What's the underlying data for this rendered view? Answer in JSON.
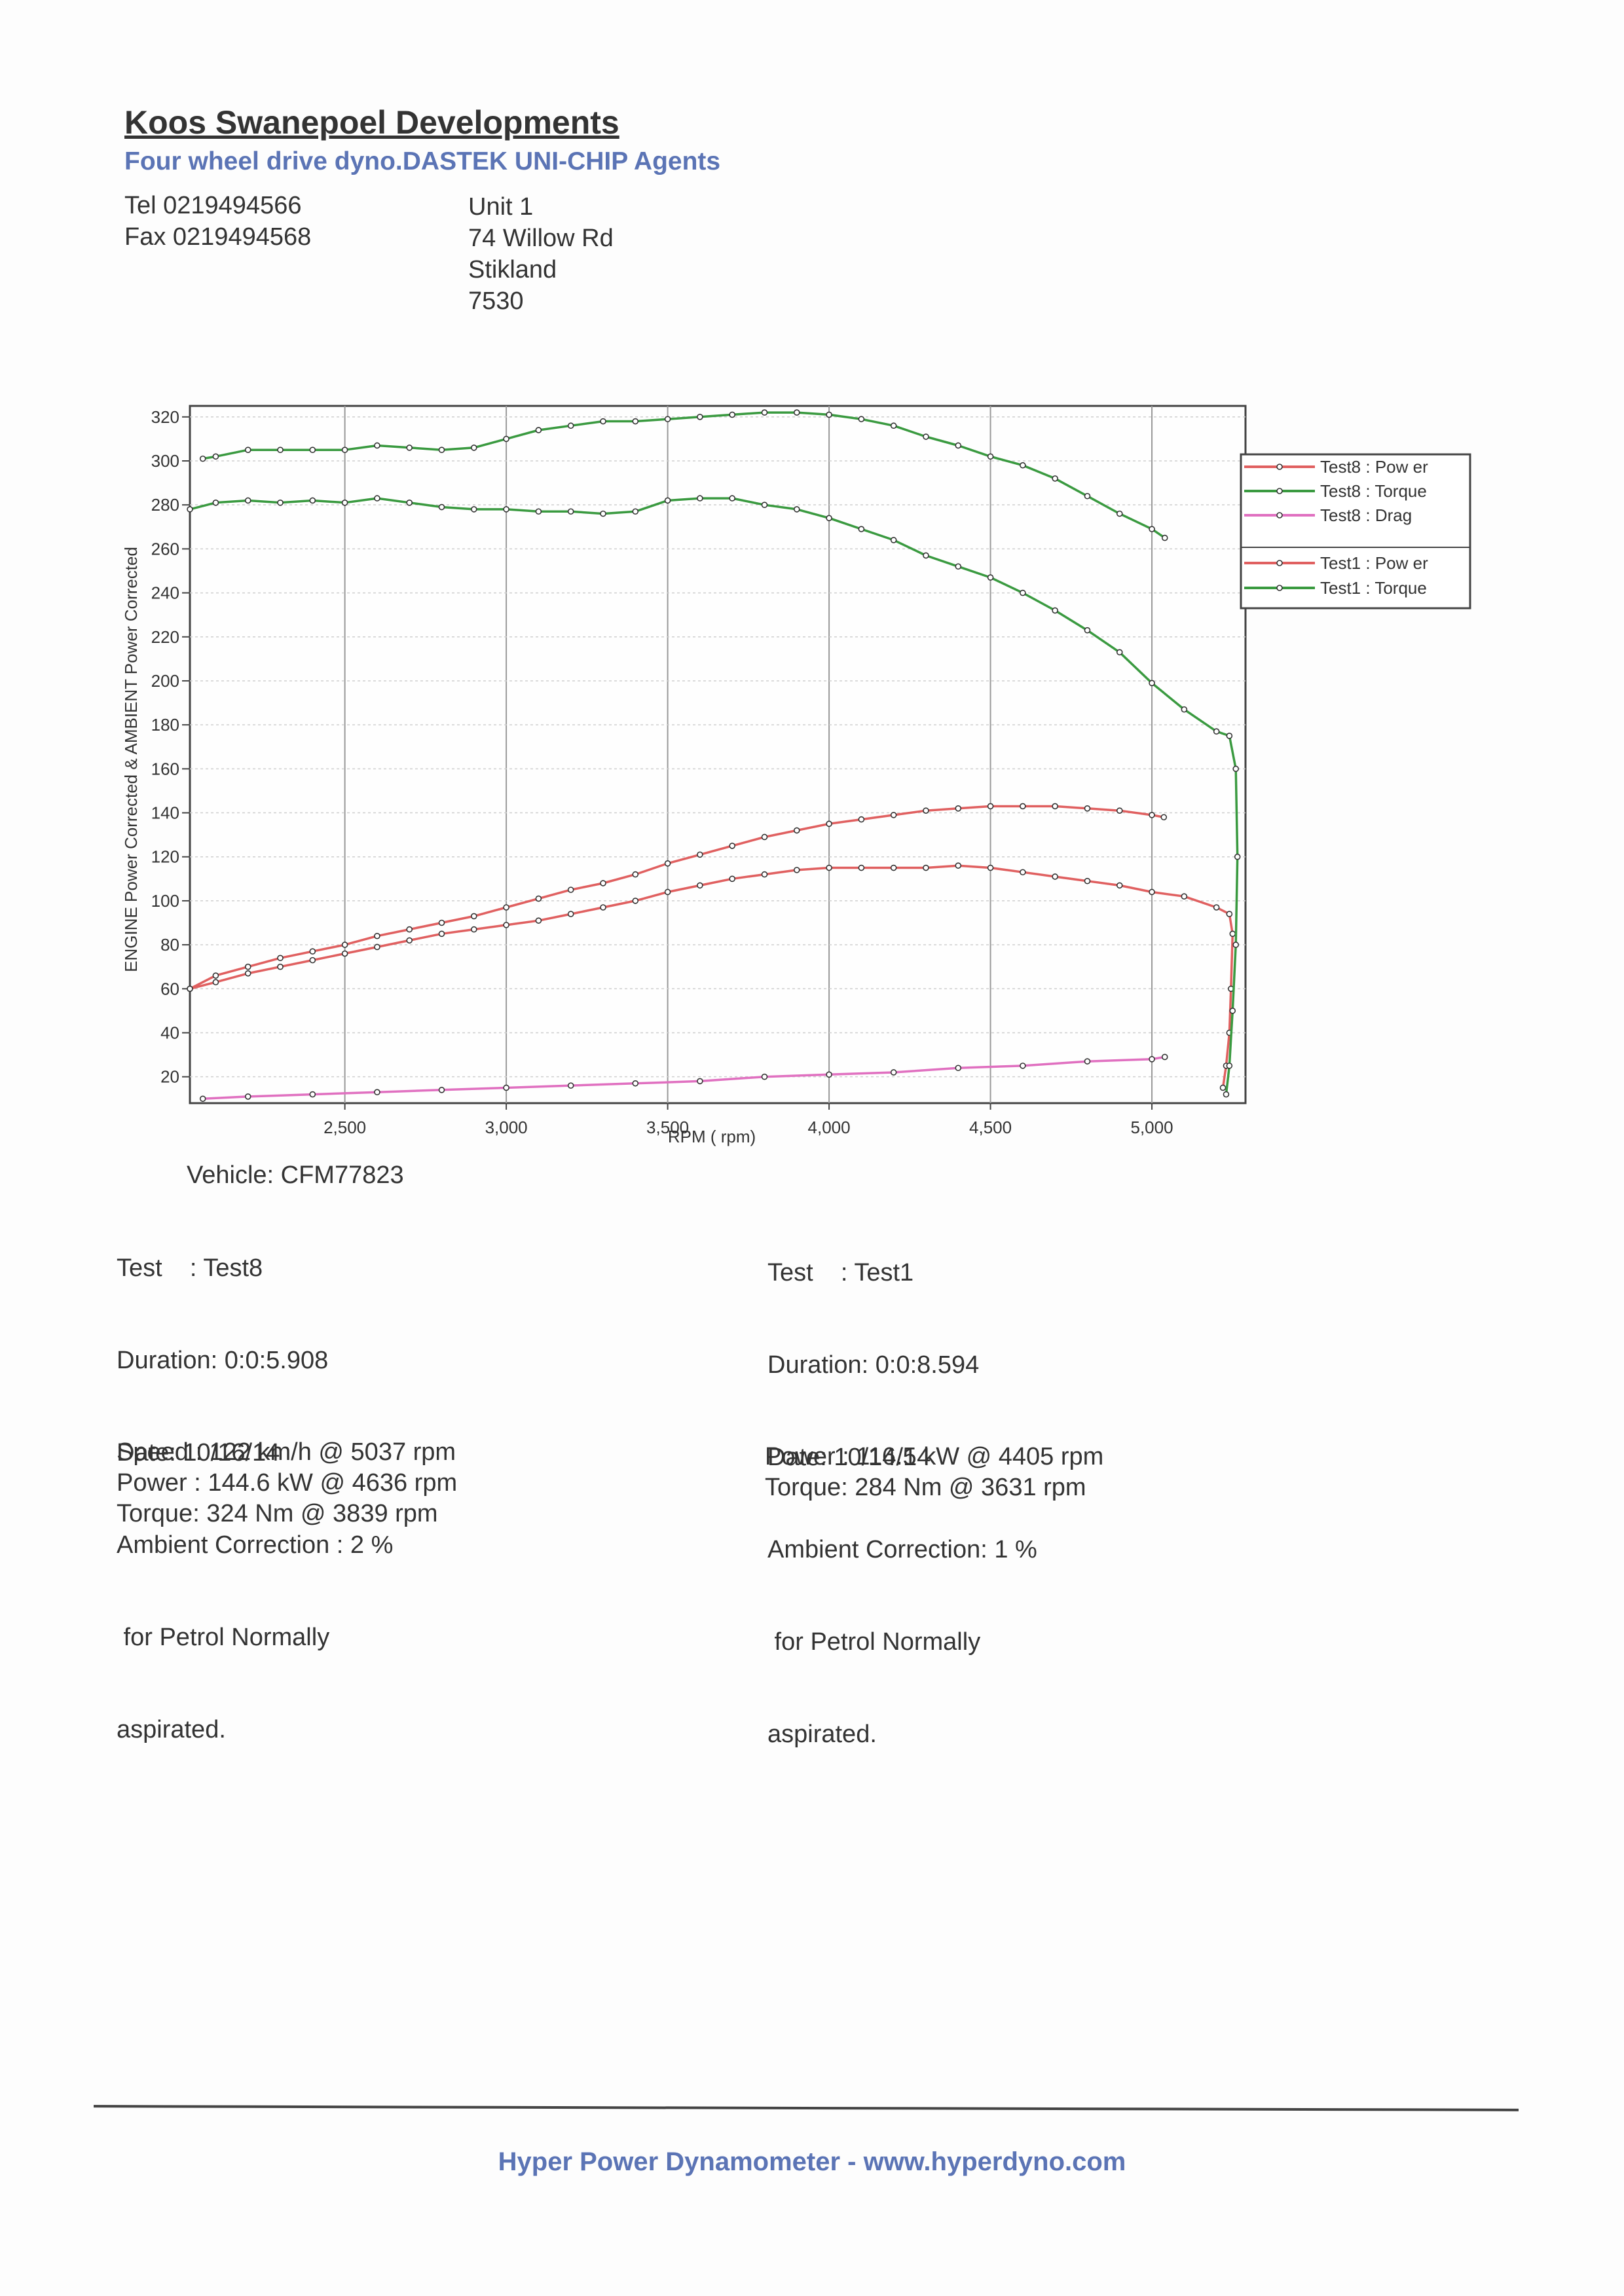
{
  "header": {
    "company": "Koos Swanepoel Developments",
    "subtitle": "Four wheel drive dyno.DASTEK UNI-CHIP Agents",
    "tel": "Tel 0219494566",
    "fax": "Fax 0219494568",
    "address": [
      "Unit 1",
      "74 Willow Rd",
      "Stikland",
      "7530"
    ]
  },
  "left_info": {
    "vehicle": "Vehicle: CFM77823",
    "lines": [
      "Test    : Test8",
      "Duration: 0:0:5.908",
      "Date: 10/16/14",
      "Ambient Correction : 2 %",
      " for Petrol Normally",
      "aspirated."
    ],
    "results": [
      "Speed : 122 km/h @ 5037 rpm",
      "Power : 144.6 kW @ 4636 rpm",
      "Torque: 324 Nm @ 3839 rpm"
    ]
  },
  "right_info": {
    "lines": [
      "Test    : Test1",
      "Duration: 0:0:8.594",
      "Date: 10/14/14",
      "Ambient Correction: 1 %",
      " for Petrol Normally",
      "aspirated."
    ],
    "results": [
      "Power : 116.5 kW @ 4405 rpm",
      "Torque: 284 Nm @ 3631 rpm"
    ]
  },
  "footer": "Hyper Power Dynamometer  -  www.hyperdyno.com",
  "chart_data": {
    "type": "line",
    "xlabel": "RPM ( rpm)",
    "ylabel": "ENGINE Power Corrected & AMBIENT Power Corrected",
    "xlim": [
      2020,
      5290
    ],
    "ylim": [
      8,
      325
    ],
    "x_ticks": [
      "2,500",
      "3,000",
      "3,500",
      "4,000",
      "4,500",
      "5,000"
    ],
    "x_tick_values": [
      2500,
      3000,
      3500,
      4000,
      4500,
      5000
    ],
    "y_ticks": [
      "20",
      "40",
      "60",
      "80",
      "100",
      "120",
      "140",
      "160",
      "180",
      "200",
      "220",
      "240",
      "260",
      "280",
      "300",
      "320"
    ],
    "y_tick_values": [
      20,
      40,
      60,
      80,
      100,
      120,
      140,
      160,
      180,
      200,
      220,
      240,
      260,
      280,
      300,
      320
    ],
    "grid": true,
    "legend_position": "right",
    "series": [
      {
        "name": "Test8 : Pow er",
        "color": "#e06060",
        "points": [
          [
            2020,
            60
          ],
          [
            2100,
            66
          ],
          [
            2200,
            70
          ],
          [
            2300,
            74
          ],
          [
            2400,
            77
          ],
          [
            2500,
            80
          ],
          [
            2600,
            84
          ],
          [
            2700,
            87
          ],
          [
            2800,
            90
          ],
          [
            2900,
            93
          ],
          [
            3000,
            97
          ],
          [
            3100,
            101
          ],
          [
            3200,
            105
          ],
          [
            3300,
            108
          ],
          [
            3400,
            112
          ],
          [
            3500,
            117
          ],
          [
            3600,
            121
          ],
          [
            3700,
            125
          ],
          [
            3800,
            129
          ],
          [
            3900,
            132
          ],
          [
            4000,
            135
          ],
          [
            4100,
            137
          ],
          [
            4200,
            139
          ],
          [
            4300,
            141
          ],
          [
            4400,
            142
          ],
          [
            4500,
            143
          ],
          [
            4600,
            143
          ],
          [
            4700,
            143
          ],
          [
            4800,
            142
          ],
          [
            4900,
            141
          ],
          [
            5000,
            139
          ],
          [
            5037,
            138
          ]
        ]
      },
      {
        "name": "Test8 : Torque",
        "color": "#3a9a40",
        "points": [
          [
            2060,
            301
          ],
          [
            2100,
            302
          ],
          [
            2200,
            305
          ],
          [
            2300,
            305
          ],
          [
            2400,
            305
          ],
          [
            2500,
            305
          ],
          [
            2600,
            307
          ],
          [
            2700,
            306
          ],
          [
            2800,
            305
          ],
          [
            2900,
            306
          ],
          [
            3000,
            310
          ],
          [
            3100,
            314
          ],
          [
            3200,
            316
          ],
          [
            3300,
            318
          ],
          [
            3400,
            318
          ],
          [
            3500,
            319
          ],
          [
            3600,
            320
          ],
          [
            3700,
            321
          ],
          [
            3800,
            322
          ],
          [
            3900,
            322
          ],
          [
            4000,
            321
          ],
          [
            4100,
            319
          ],
          [
            4200,
            316
          ],
          [
            4300,
            311
          ],
          [
            4400,
            307
          ],
          [
            4500,
            302
          ],
          [
            4600,
            298
          ],
          [
            4700,
            292
          ],
          [
            4800,
            284
          ],
          [
            4900,
            276
          ],
          [
            5000,
            269
          ],
          [
            5040,
            265
          ]
        ]
      },
      {
        "name": "Test8 : Drag",
        "color": "#e070c0",
        "points": [
          [
            2060,
            10
          ],
          [
            2200,
            11
          ],
          [
            2400,
            12
          ],
          [
            2600,
            13
          ],
          [
            2800,
            14
          ],
          [
            3000,
            15
          ],
          [
            3200,
            16
          ],
          [
            3400,
            17
          ],
          [
            3600,
            18
          ],
          [
            3800,
            20
          ],
          [
            4000,
            21
          ],
          [
            4200,
            22
          ],
          [
            4400,
            24
          ],
          [
            4600,
            25
          ],
          [
            4800,
            27
          ],
          [
            5000,
            28
          ],
          [
            5040,
            29
          ]
        ]
      },
      {
        "name": "Test1 : Pow er",
        "color": "#e06060",
        "points": [
          [
            2020,
            60
          ],
          [
            2100,
            63
          ],
          [
            2200,
            67
          ],
          [
            2300,
            70
          ],
          [
            2400,
            73
          ],
          [
            2500,
            76
          ],
          [
            2600,
            79
          ],
          [
            2700,
            82
          ],
          [
            2800,
            85
          ],
          [
            2900,
            87
          ],
          [
            3000,
            89
          ],
          [
            3100,
            91
          ],
          [
            3200,
            94
          ],
          [
            3300,
            97
          ],
          [
            3400,
            100
          ],
          [
            3500,
            104
          ],
          [
            3600,
            107
          ],
          [
            3700,
            110
          ],
          [
            3800,
            112
          ],
          [
            3900,
            114
          ],
          [
            4000,
            115
          ],
          [
            4100,
            115
          ],
          [
            4200,
            115
          ],
          [
            4300,
            115
          ],
          [
            4400,
            116
          ],
          [
            4500,
            115
          ],
          [
            4600,
            113
          ],
          [
            4700,
            111
          ],
          [
            4800,
            109
          ],
          [
            4900,
            107
          ],
          [
            5000,
            104
          ],
          [
            5100,
            102
          ],
          [
            5200,
            97
          ],
          [
            5240,
            94
          ],
          [
            5250,
            85
          ],
          [
            5245,
            60
          ],
          [
            5240,
            40
          ],
          [
            5230,
            25
          ],
          [
            5220,
            15
          ]
        ]
      },
      {
        "name": "Test1 : Torque",
        "color": "#3a9a40",
        "points": [
          [
            2020,
            278
          ],
          [
            2100,
            281
          ],
          [
            2200,
            282
          ],
          [
            2300,
            281
          ],
          [
            2400,
            282
          ],
          [
            2500,
            281
          ],
          [
            2600,
            283
          ],
          [
            2700,
            281
          ],
          [
            2800,
            279
          ],
          [
            2900,
            278
          ],
          [
            3000,
            278
          ],
          [
            3100,
            277
          ],
          [
            3200,
            277
          ],
          [
            3300,
            276
          ],
          [
            3400,
            277
          ],
          [
            3500,
            282
          ],
          [
            3600,
            283
          ],
          [
            3700,
            283
          ],
          [
            3800,
            280
          ],
          [
            3900,
            278
          ],
          [
            4000,
            274
          ],
          [
            4100,
            269
          ],
          [
            4200,
            264
          ],
          [
            4300,
            257
          ],
          [
            4400,
            252
          ],
          [
            4500,
            247
          ],
          [
            4600,
            240
          ],
          [
            4700,
            232
          ],
          [
            4800,
            223
          ],
          [
            4900,
            213
          ],
          [
            5000,
            199
          ],
          [
            5100,
            187
          ],
          [
            5200,
            177
          ],
          [
            5240,
            175
          ],
          [
            5260,
            160
          ],
          [
            5265,
            120
          ],
          [
            5260,
            80
          ],
          [
            5250,
            50
          ],
          [
            5240,
            25
          ],
          [
            5230,
            12
          ]
        ]
      }
    ],
    "legend_groups": [
      [
        "Test8 : Pow er",
        "Test8 : Torque",
        "Test8 : Drag"
      ],
      [
        "Test1 : Pow er",
        "Test1 : Torque"
      ]
    ]
  }
}
